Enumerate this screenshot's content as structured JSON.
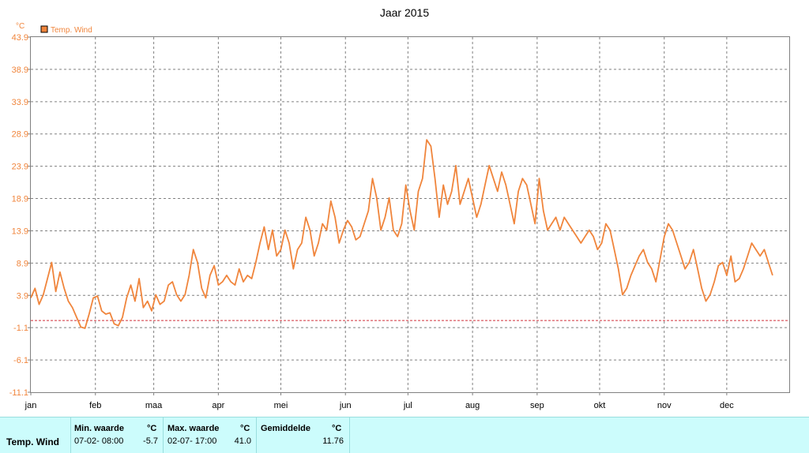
{
  "chart_data": {
    "type": "line",
    "title": "Jaar 2015",
    "y_unit": "°C",
    "legend": [
      "Temp. Wind"
    ],
    "legend_position": "top-left",
    "grid": true,
    "ylim": [
      -11.1,
      43.9
    ],
    "y_ticks": [
      "43.9",
      "38.9",
      "33.9",
      "28.9",
      "23.9",
      "18.9",
      "13.9",
      "8.9",
      "3.9",
      "-1.1",
      "-6.1",
      "-11.1"
    ],
    "x_ticks": [
      "jan",
      "feb",
      "maa",
      "apr",
      "mei",
      "jun",
      "jul",
      "aug",
      "sep",
      "okt",
      "nov",
      "dec"
    ],
    "x_tick_day_of_year": [
      1,
      32,
      60,
      91,
      121,
      152,
      182,
      213,
      244,
      274,
      305,
      335
    ],
    "reference_line_value": 0,
    "series": [
      {
        "name": "Temp. Wind",
        "color": "#f0853c",
        "x_day_of_year": [
          1,
          3,
          5,
          7,
          9,
          11,
          13,
          15,
          17,
          19,
          21,
          23,
          25,
          27,
          29,
          31,
          33,
          35,
          37,
          39,
          41,
          43,
          45,
          47,
          49,
          51,
          53,
          55,
          57,
          59,
          61,
          63,
          65,
          67,
          69,
          71,
          73,
          75,
          77,
          79,
          81,
          83,
          85,
          87,
          89,
          91,
          93,
          95,
          97,
          99,
          101,
          103,
          105,
          107,
          109,
          111,
          113,
          115,
          117,
          119,
          121,
          123,
          125,
          127,
          129,
          131,
          133,
          135,
          137,
          139,
          141,
          143,
          145,
          147,
          149,
          151,
          153,
          155,
          157,
          159,
          161,
          163,
          165,
          167,
          169,
          171,
          173,
          175,
          177,
          179,
          181,
          183,
          185,
          187,
          189,
          191,
          193,
          195,
          197,
          199,
          201,
          203,
          205,
          207,
          209,
          211,
          213,
          215,
          217,
          219,
          221,
          223,
          225,
          227,
          229,
          231,
          233,
          235,
          237,
          239,
          241,
          243,
          245,
          247,
          249,
          251,
          253,
          255,
          257,
          259,
          261,
          263,
          265,
          267,
          269,
          271,
          273,
          275,
          277,
          279,
          281,
          283,
          285,
          287,
          289,
          291,
          293,
          295,
          297,
          299,
          301,
          303,
          305,
          307,
          309,
          311,
          313,
          315,
          317,
          319,
          321,
          323,
          325,
          327,
          329,
          331,
          333,
          335,
          337,
          339,
          341,
          343,
          345,
          347,
          349,
          351,
          353,
          355,
          357,
          359,
          361,
          363,
          365
        ],
        "values": [
          3.5,
          5.0,
          2.5,
          4.0,
          6.5,
          9.0,
          4.5,
          7.5,
          5.0,
          3.0,
          2.0,
          0.5,
          -1.0,
          -1.2,
          1.0,
          3.5,
          3.8,
          1.5,
          1.0,
          1.2,
          -0.5,
          -0.8,
          0.5,
          3.5,
          5.5,
          3.0,
          6.5,
          2.0,
          3.0,
          1.5,
          4.0,
          2.5,
          3.0,
          5.5,
          6.0,
          4.0,
          3.0,
          4.0,
          7.0,
          11.0,
          9.0,
          5.0,
          3.5,
          7.0,
          8.5,
          5.5,
          6.0,
          7.0,
          6.0,
          5.5,
          8.0,
          6.0,
          7.0,
          6.5,
          9.0,
          12.0,
          14.5,
          11.0,
          14.0,
          10.0,
          11.0,
          14.0,
          12.0,
          8.0,
          11.0,
          12.0,
          16.0,
          14.0,
          10.0,
          12.0,
          15.0,
          14.0,
          18.5,
          16.0,
          12.0,
          14.0,
          15.5,
          14.5,
          12.5,
          13.0,
          15.0,
          17.0,
          22.0,
          19.0,
          14.0,
          16.0,
          19.0,
          14.0,
          13.0,
          15.0,
          21.0,
          17.0,
          14.0,
          20.0,
          22.0,
          28.0,
          27.0,
          22.0,
          16.0,
          21.0,
          18.0,
          20.0,
          24.0,
          18.0,
          20.0,
          22.0,
          19.0,
          16.0,
          18.0,
          21.0,
          24.0,
          22.0,
          20.0,
          23.0,
          21.0,
          18.0,
          15.0,
          20.0,
          22.0,
          21.0,
          18.0,
          15.0,
          22.0,
          17.0,
          14.0,
          15.0,
          16.0,
          14.0,
          16.0,
          15.0,
          14.0,
          13.0,
          12.0,
          13.0,
          14.0,
          13.0,
          11.0,
          12.0,
          15.0,
          14.0,
          11.0,
          8.0,
          4.0,
          5.0,
          7.0,
          8.5,
          10.0,
          11.0,
          9.0,
          8.0,
          6.0,
          9.5,
          13.0,
          15.0,
          14.0,
          12.0,
          10.0,
          8.0,
          9.0,
          11.0,
          8.0,
          5.0,
          3.0,
          4.0,
          6.0,
          8.5,
          9.0,
          7.0,
          10.0,
          6.0,
          6.5,
          8.0,
          10.0,
          12.0,
          11.0,
          10.0,
          11.0,
          9.0,
          7.0
        ]
      }
    ]
  },
  "stats": {
    "row_label": "Temp. Wind",
    "min_header": "Min. waarde",
    "min_unit": "°C",
    "min_datetime": "07-02- 08:00",
    "min_value": "-5.7",
    "max_header": "Max. waarde",
    "max_unit": "°C",
    "max_datetime": "02-07- 17:00",
    "max_value": "41.0",
    "avg_header": "Gemiddelde",
    "avg_unit": "°C",
    "avg_value": "11.76"
  }
}
